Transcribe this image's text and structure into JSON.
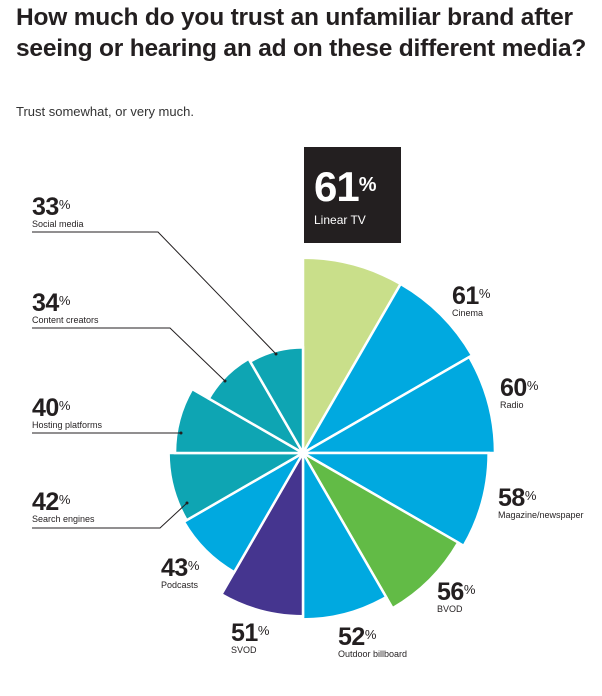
{
  "title": "How much do you trust an unfamiliar brand after seeing or hearing an ad on these different media?",
  "subtitle": "Trust somewhat, or very much.",
  "chart_data": {
    "type": "polar-area",
    "title": "How much do you trust an unfamiliar brand after seeing or hearing an ad on these different media?",
    "subtitle": "Trust somewhat, or very much.",
    "unit": "%",
    "categories": [
      "Linear TV",
      "Cinema",
      "Radio",
      "Magazine/newspaper",
      "BVOD",
      "Outdoor billboard",
      "SVOD",
      "Podcasts",
      "Search engines",
      "Hosting platforms",
      "Content creators",
      "Social media"
    ],
    "values": [
      61,
      61,
      60,
      58,
      56,
      52,
      51,
      43,
      42,
      40,
      34,
      33
    ],
    "colors": [
      "#c9df8a",
      "#00a9e0",
      "#00a9e0",
      "#00a9e0",
      "#62bb46",
      "#00a9e0",
      "#45358f",
      "#00a9e0",
      "#0ea5b3",
      "#0ea5b3",
      "#0ea5b3",
      "#0ea5b3"
    ],
    "highlight": {
      "value": "61",
      "label": "Linear TV"
    }
  }
}
